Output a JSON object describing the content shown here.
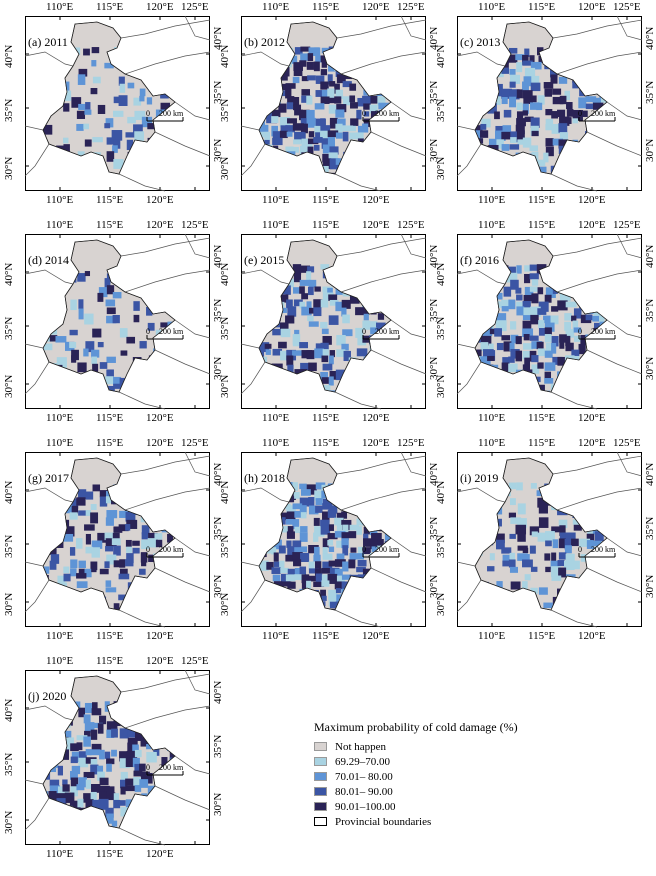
{
  "colors": {
    "not_happen": "#d8d3d1",
    "c69_70": "#a9d3e2",
    "c70_80": "#5e94d6",
    "c80_90": "#3b55a4",
    "c90_100": "#2a2356",
    "boundary": "#222222",
    "background": "#ffffff",
    "ocean_lines": "#555555"
  },
  "axis_labels": {
    "top": [
      "110°E",
      "115°E",
      "120°E",
      "125°E"
    ],
    "bottom": [
      "110°E",
      "115°E",
      "120°E"
    ],
    "left": [
      "40°N",
      "35°N",
      "30°N"
    ],
    "right": [
      "40°N",
      "35°N",
      "30°N"
    ]
  },
  "scale_bar": {
    "zero": "0",
    "distance": "200 km"
  },
  "panels": [
    {
      "title": "(a) 2011"
    },
    {
      "title": "(b) 2012"
    },
    {
      "title": "(c) 2013"
    },
    {
      "title": "(d) 2014"
    },
    {
      "title": "(e) 2015"
    },
    {
      "title": "(f) 2016"
    },
    {
      "title": "(g) 2017"
    },
    {
      "title": "(h) 2018"
    },
    {
      "title": "(i) 2019"
    },
    {
      "title": "(j) 2020"
    }
  ],
  "legend": {
    "title": "Maximum probability of cold damage (%)",
    "items": [
      {
        "label": "Not happen",
        "color": "#d8d3d1"
      },
      {
        "label": "69.29–70.00",
        "color": "#a9d3e2"
      },
      {
        "label": "70.01– 80.00",
        "color": "#5e94d6"
      },
      {
        "label": "80.01– 90.00",
        "color": "#3b55a4"
      },
      {
        "label": "90.01–100.00",
        "color": "#2a2356"
      },
      {
        "label": "Provincial boundaries",
        "color": "#ffffff"
      }
    ]
  }
}
